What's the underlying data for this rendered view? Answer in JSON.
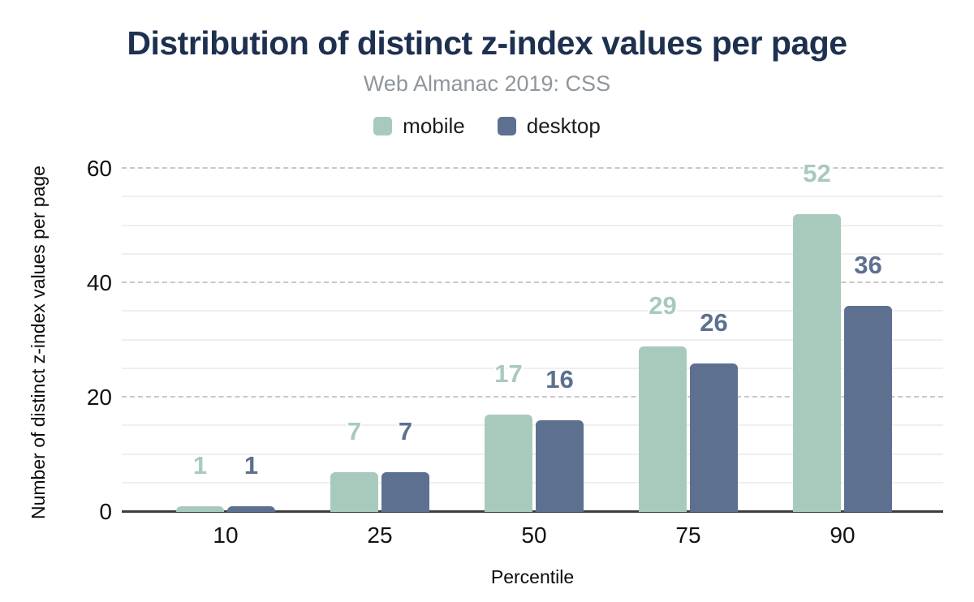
{
  "header": {
    "title": "Distribution of distinct z-index values per page",
    "subtitle": "Web Almanac 2019: CSS"
  },
  "chart_data": {
    "type": "bar",
    "title": "Distribution of distinct z-index values per page",
    "subtitle": "Web Almanac 2019: CSS",
    "categories": [
      "10",
      "25",
      "50",
      "75",
      "90"
    ],
    "series": [
      {
        "name": "mobile",
        "color": "#a8cabc",
        "values": [
          1,
          7,
          17,
          29,
          52
        ]
      },
      {
        "name": "desktop",
        "color": "#5d7090",
        "values": [
          1,
          7,
          16,
          26,
          36
        ]
      }
    ],
    "xlabel": "Percentile",
    "ylabel": "Number of distinct z-index values per page",
    "ylim": [
      0,
      60
    ],
    "y_major_ticks": [
      0,
      20,
      40,
      60
    ],
    "y_minor_step": 5,
    "grid": true,
    "legend_position": "top",
    "value_labels": true
  },
  "colors": {
    "title": "#1e3050",
    "subtitle": "#8f969c",
    "axis_text": "#111111",
    "baseline": "#3d3d3d",
    "major_gridline": "#c9c9c9",
    "minor_gridline": "#efefef",
    "mobile": "#a8cabc",
    "desktop": "#5d7090"
  }
}
